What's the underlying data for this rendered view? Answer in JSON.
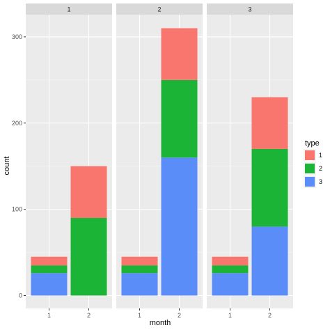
{
  "chart_data": {
    "type": "bar",
    "stacked": true,
    "facet_variable_shown_in_strips": true,
    "facets": [
      {
        "label": "1",
        "categories": [
          "1",
          "2"
        ],
        "series": [
          {
            "name": "1",
            "values": [
              10,
              60
            ]
          },
          {
            "name": "2",
            "values": [
              9,
              90
            ]
          },
          {
            "name": "3",
            "values": [
              26,
              0
            ]
          }
        ]
      },
      {
        "label": "2",
        "categories": [
          "1",
          "2"
        ],
        "series": [
          {
            "name": "1",
            "values": [
              10,
              60
            ]
          },
          {
            "name": "2",
            "values": [
              9,
              90
            ]
          },
          {
            "name": "3",
            "values": [
              26,
              160
            ]
          }
        ]
      },
      {
        "label": "3",
        "categories": [
          "1",
          "2"
        ],
        "series": [
          {
            "name": "1",
            "values": [
              10,
              60
            ]
          },
          {
            "name": "2",
            "values": [
              9,
              90
            ]
          },
          {
            "name": "3",
            "values": [
              26,
              80
            ]
          }
        ]
      }
    ],
    "xlabel": "month",
    "ylabel": "count",
    "ylim": [
      0,
      310
    ],
    "yticks": [
      0,
      100,
      200,
      300
    ],
    "ytick_labels": [
      "0",
      "100",
      "200",
      "300"
    ],
    "legend": {
      "title": "type",
      "placement": "right",
      "entries": [
        "1",
        "2",
        "3"
      ]
    },
    "colors": {
      "1": "#F8766D",
      "2": "#1CB436",
      "3": "#5B8DF8"
    },
    "grid": true,
    "panel_background": "#EBEBEB",
    "strip_background": "#D9D9D9"
  }
}
